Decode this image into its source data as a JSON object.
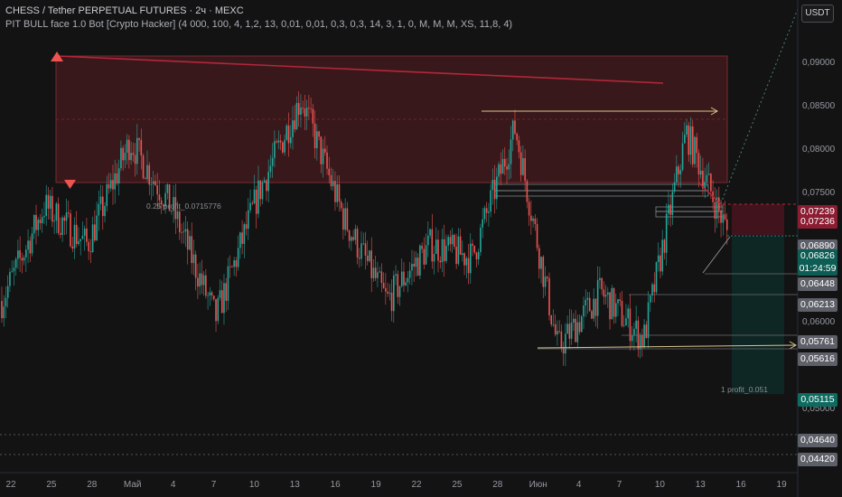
{
  "header": {
    "title": "CHESS / Tether PERPETUAL FUTURES · 2ч · MEXC",
    "indicator": "PIT BULL face 1.0 Bot [Crypto Hacker] (4 000, 100, 4, 1,2, 13, 0,01, 0,01, 0,3, 0,3, 14, 3, 1, 0, M, M, M, XS, 11,8, 4)"
  },
  "unit_badge": "USDT",
  "colors": {
    "background": "#131313",
    "up": "#26a69a",
    "down": "#ef5350",
    "trendline": "#b2283a",
    "zone": "#5a1e22",
    "gold": "#d6c58a"
  },
  "y_axis": {
    "ticks": [
      "0,09000",
      "0,08500",
      "0,08000",
      "0,07500",
      "0,06000",
      "0,05000"
    ]
  },
  "x_axis": {
    "ticks": [
      "22",
      "25",
      "28",
      "Май",
      "4",
      "7",
      "10",
      "13",
      "16",
      "19",
      "22",
      "25",
      "28",
      "Июн",
      "4",
      "7",
      "10",
      "13",
      "16",
      "19"
    ]
  },
  "price_labels": [
    {
      "text": "0,07239",
      "color": "#8c1c32"
    },
    {
      "text": "0,07236",
      "color": "#8c1c32"
    },
    {
      "text": "0,06890",
      "color": "#5d6068"
    },
    {
      "text": "0,06826",
      "color": "#0e5d54",
      "sub": "01:24:59"
    },
    {
      "text": "0,06448",
      "color": "#5d6068"
    },
    {
      "text": "0,06213",
      "color": "#5d6068"
    },
    {
      "text": "0,05761",
      "color": "#5d6068"
    },
    {
      "text": "0,05616",
      "color": "#5d6068"
    },
    {
      "text": "0,05115",
      "color": "#0e6b60"
    },
    {
      "text": "0,04640",
      "color": "#5d6068"
    },
    {
      "text": "0,04420",
      "color": "#5d6068"
    }
  ],
  "annotations": {
    "profit_025": "0.25 profit_0.0715776",
    "profit_1": "1 profit_0.051"
  },
  "chart_data": {
    "type": "candlestick",
    "symbol": "CHESS/USDT",
    "interval": "2ч",
    "x": [
      "22",
      "25",
      "28",
      "Май",
      "4",
      "7",
      "10",
      "13",
      "16",
      "19",
      "22",
      "25",
      "28",
      "Июн",
      "4",
      "7",
      "10",
      "13"
    ],
    "close": [
      0.0625,
      0.0735,
      0.069,
      0.081,
      0.073,
      0.0605,
      0.075,
      0.086,
      0.072,
      0.0625,
      0.069,
      0.0675,
      0.0825,
      0.057,
      0.0635,
      0.058,
      0.082,
      0.07
    ],
    "last_price": 0.06826,
    "ylim": [
      0.0442,
      0.0965
    ],
    "grid": false
  }
}
